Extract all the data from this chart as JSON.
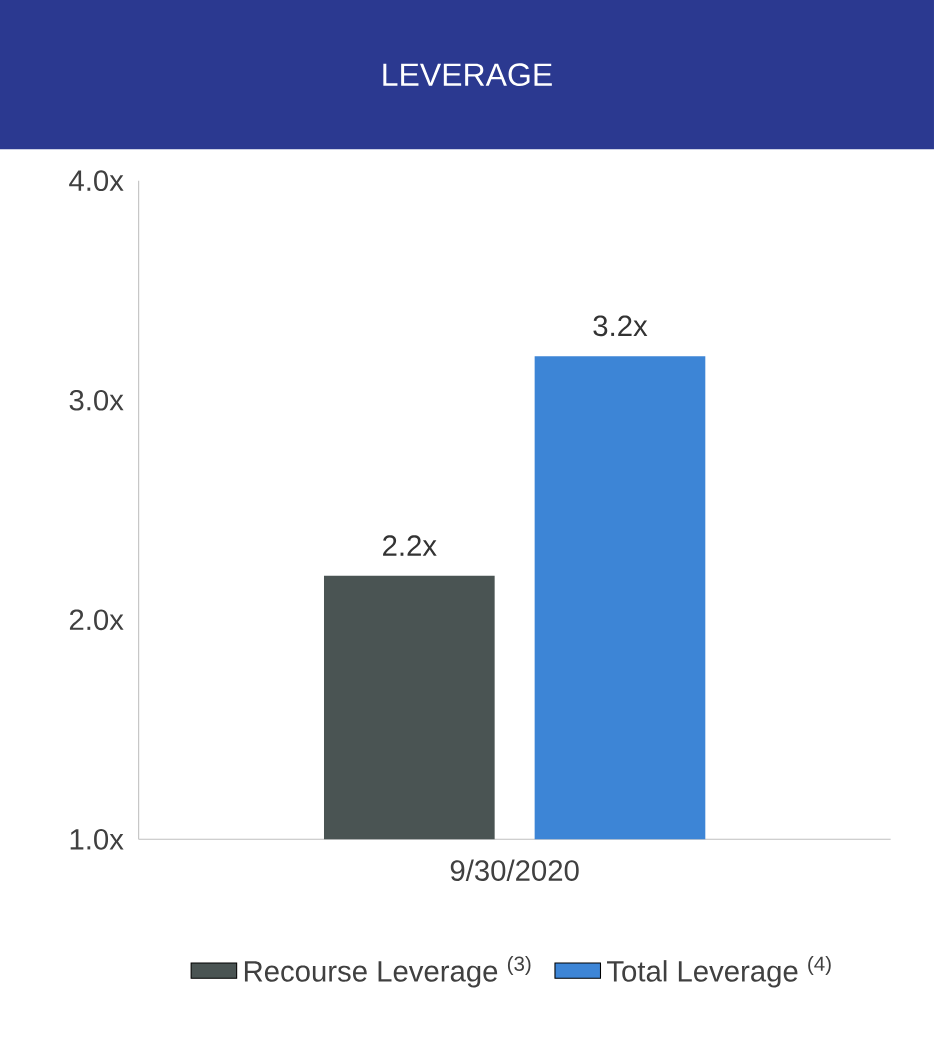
{
  "chart_data": {
    "type": "bar",
    "title": "LEVERAGE",
    "categories": [
      "9/30/2020"
    ],
    "series": [
      {
        "name": "Recourse Leverage $^{(3)}$",
        "color": "#4a5453",
        "values": [
          2.2
        ],
        "value_labels": [
          "2.2x"
        ]
      },
      {
        "name": "Total Leverage $^{(4)}$",
        "color": "#3d85d6",
        "values": [
          3.2
        ],
        "value_labels": [
          "3.2x"
        ]
      }
    ],
    "ylim": [
      1,
      4
    ],
    "yticks": [
      {
        "value": 1,
        "label": "1.0x"
      },
      {
        "value": 2,
        "label": "2.0x"
      },
      {
        "value": 3,
        "label": "3.0x"
      },
      {
        "value": 4,
        "label": "4.0x"
      }
    ],
    "grid": false,
    "legend": "bottom"
  }
}
